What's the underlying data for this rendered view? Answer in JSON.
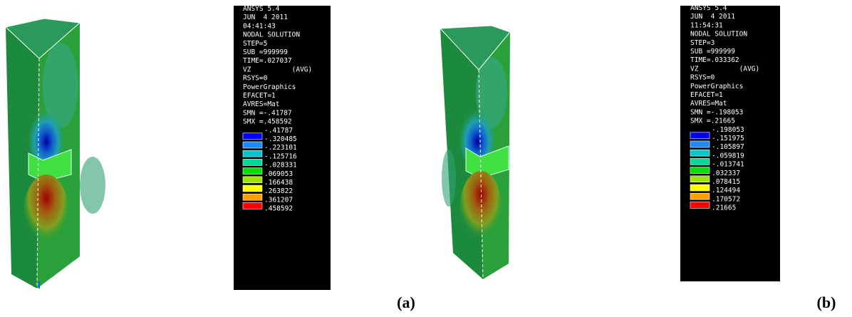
{
  "panels": [
    {
      "info": [
        "ANSYS 5.4",
        "JUN  4 2011",
        "04:41:43",
        "NODAL SOLUTION",
        "STEP=5",
        "SUB =999999",
        "TIME=.027037",
        "VZ          (AVG)",
        "RSYS=0",
        "PowerGraphics",
        "EFACET=1",
        "AVRES=Mat",
        "SMN =-.41787",
        "SMX =.458592"
      ],
      "legend": [
        "-.41787",
        "-.320485",
        "-.223101",
        "-.125716",
        "-.028331",
        ".069053",
        ".166438",
        ".263822",
        ".361207",
        ".458592"
      ],
      "caption": "(a)"
    },
    {
      "info": [
        "ANSYS 5.4",
        "JUN  4 2011",
        "11:54:31",
        "NODAL SOLUTION",
        "STEP=3",
        "SUB =999999",
        "TIME=.033362",
        "VZ          (AVG)",
        "RSYS=0",
        "PowerGraphics",
        "EFACET=1",
        "AVRES=Mat",
        "SMN =-.198053",
        "SMX =.21665"
      ],
      "legend": [
        "-.198053",
        "-.151975",
        "-.105897",
        "-.059819",
        "-.013741",
        ".032337",
        ".078415",
        ".124494",
        ".170572",
        ".21665"
      ],
      "caption": "(b)"
    }
  ]
}
